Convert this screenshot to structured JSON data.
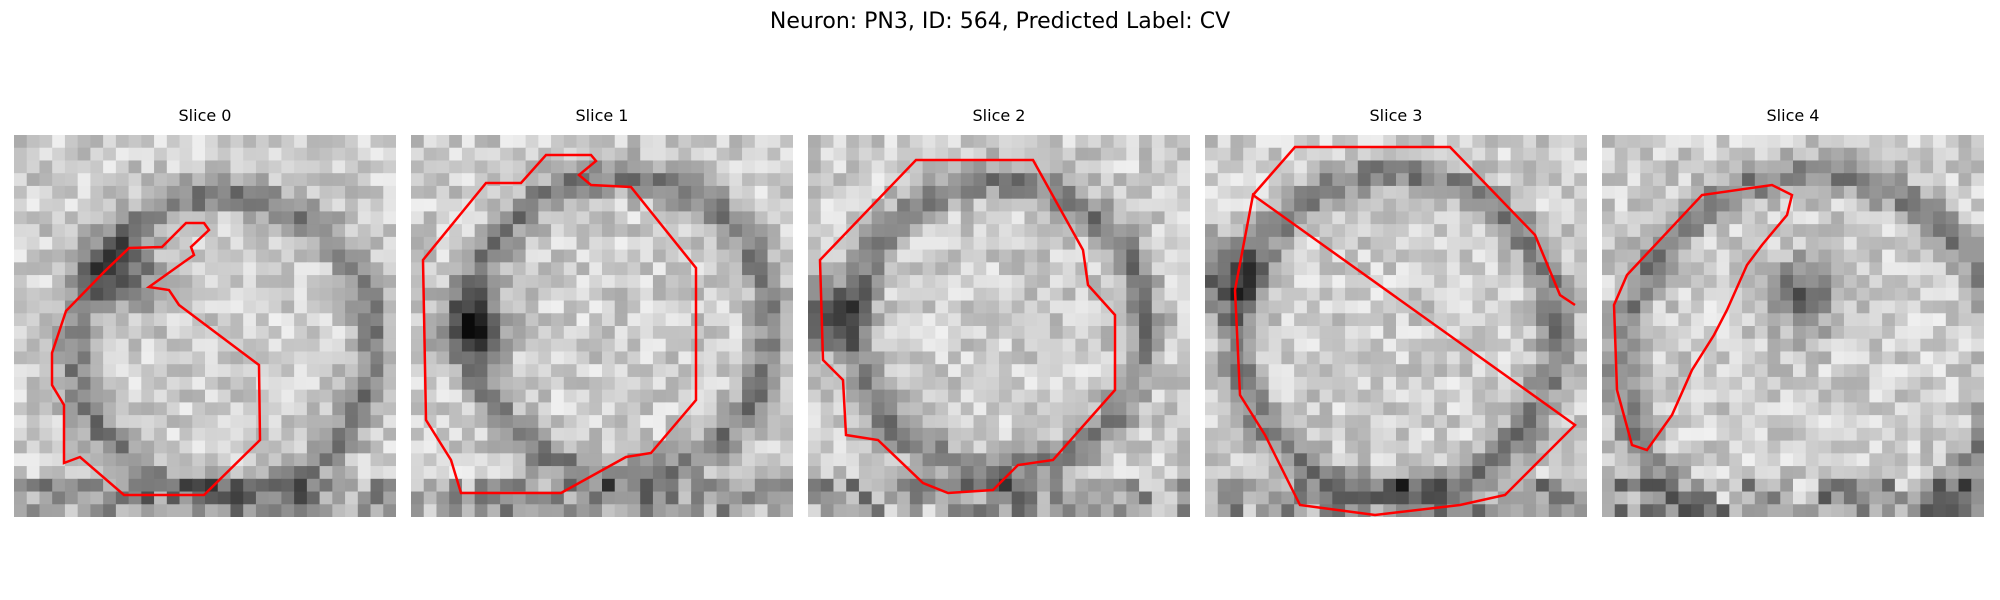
{
  "figure": {
    "title": "Neuron: PN3, ID: 564, Predicted Label: CV",
    "panels": [
      {
        "title": "Slice 0",
        "image": "grayscale EM micrograph slice with red contour outline",
        "contour_color": "#ff0000"
      },
      {
        "title": "Slice 1",
        "image": "grayscale EM micrograph slice with red contour outline",
        "contour_color": "#ff0000"
      },
      {
        "title": "Slice 2",
        "image": "grayscale EM micrograph slice with red contour outline",
        "contour_color": "#ff0000"
      },
      {
        "title": "Slice 3",
        "image": "grayscale EM micrograph slice with red contour outline",
        "contour_color": "#ff0000"
      },
      {
        "title": "Slice 4",
        "image": "grayscale EM micrograph slice with red contour outline",
        "contour_color": "#ff0000"
      }
    ]
  }
}
